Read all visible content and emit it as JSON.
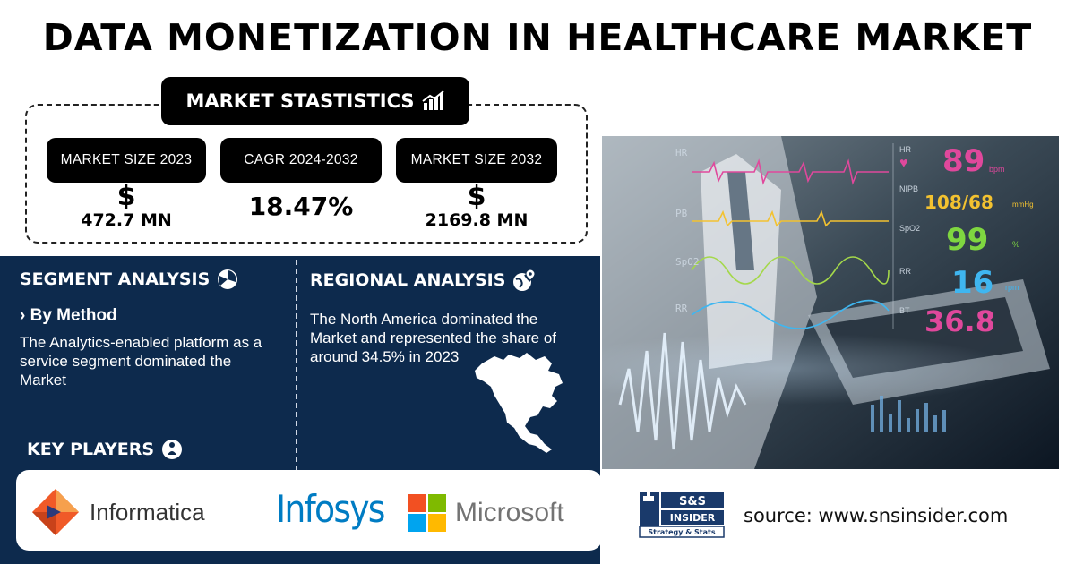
{
  "title": "DATA MONETIZATION IN HEALTHCARE MARKET",
  "statistics": {
    "header": "MARKET STASTISTICS",
    "items": [
      {
        "label": "MARKET SIZE 2023",
        "symbol": "$",
        "value": "472.7 MN"
      },
      {
        "label": "CAGR 2024-2032",
        "symbol": "",
        "value": "18.47%"
      },
      {
        "label": "MARKET SIZE 2032",
        "symbol": "$",
        "value": "2169.8 MN"
      }
    ]
  },
  "segment": {
    "title": "SEGMENT ANALYSIS",
    "subtitle": "› By Method",
    "text": "The Analytics-enabled platform as a service segment dominated the Market"
  },
  "regional": {
    "title": "REGIONAL ANALYSIS",
    "text": "The North America dominated the Market and represented the share of around 34.5% in 2023"
  },
  "key_players": {
    "title": "KEY PLAYERS",
    "companies": [
      "Informatica",
      "Infosys",
      "Microsoft"
    ]
  },
  "monitor": {
    "labels": [
      "HR",
      "PB",
      "SpO2",
      "RR"
    ],
    "readings": [
      {
        "label": "HR",
        "value": "89",
        "unit": "bpm",
        "color": "#e0489c"
      },
      {
        "label": "NIPB",
        "value": "108/68",
        "unit": "mmHg",
        "color": "#f3c230"
      },
      {
        "label": "SpO2",
        "value": "99",
        "unit": "%",
        "color": "#7fd640"
      },
      {
        "label": "RR",
        "value": "16",
        "unit": "rpm",
        "color": "#3fb6f0"
      },
      {
        "label": "BT",
        "value": "36.8",
        "unit": "",
        "color": "#e0489c"
      }
    ]
  },
  "brand": {
    "line1": "S&S",
    "line2": "INSIDER",
    "line3": "Strategy & Stats"
  },
  "source": "source: www.snsinsider.com",
  "colors": {
    "navy": "#0d2a4d",
    "black": "#000000"
  }
}
